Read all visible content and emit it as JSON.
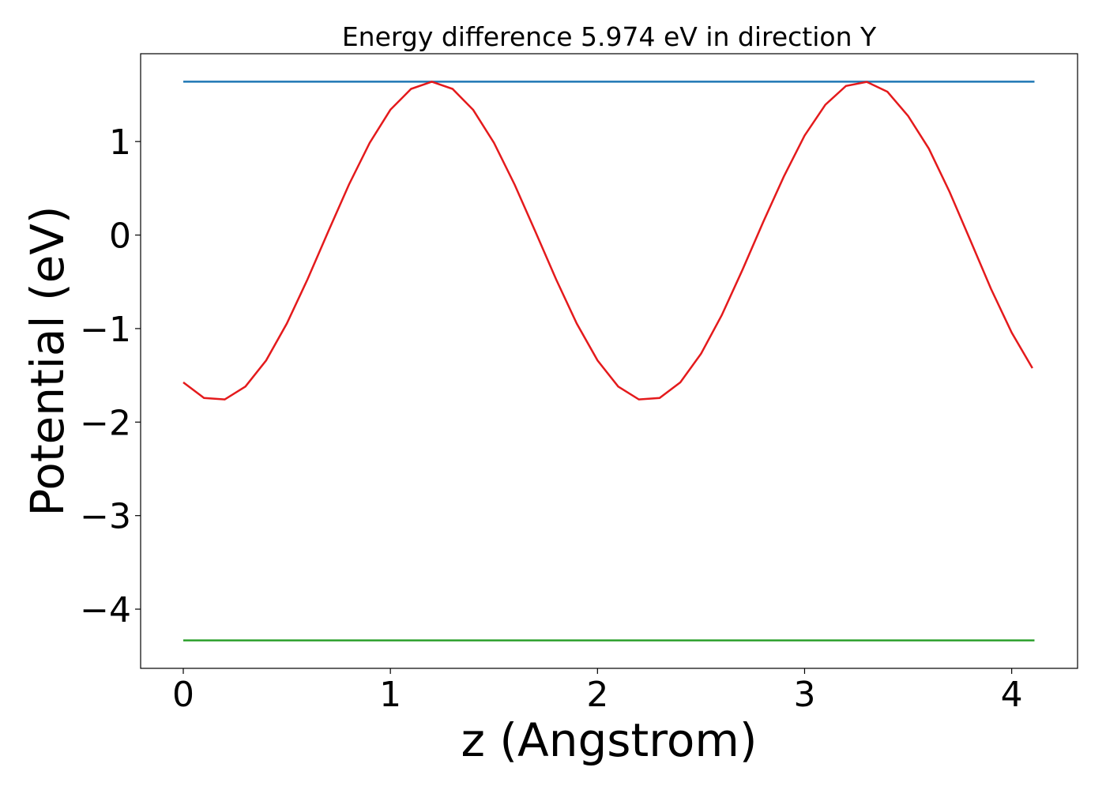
{
  "chart_data": {
    "type": "line",
    "title": "Energy difference 5.974 eV in direction Y",
    "xlabel": "z (Angstrom)",
    "ylabel": "Potential (eV)",
    "xlim": [
      -0.206,
      4.318
    ],
    "ylim": [
      -4.633,
      1.939
    ],
    "xticks": [
      0,
      1,
      2,
      3,
      4
    ],
    "yticks": [
      {
        "value": -4,
        "label": "−4"
      },
      {
        "value": -3,
        "label": "−3"
      },
      {
        "value": -2,
        "label": "−2"
      },
      {
        "value": -1,
        "label": "−1"
      },
      0,
      1
    ],
    "series": [
      {
        "color": "#1f77b4",
        "x": [
          0,
          4.11
        ],
        "values": [
          1.64,
          1.64
        ]
      },
      {
        "color": "#2ca02c",
        "x": [
          0,
          4.11
        ],
        "values": [
          -4.334,
          -4.334
        ]
      },
      {
        "color": "#e41a1c",
        "x": [
          0,
          0.1,
          0.2,
          0.3,
          0.4,
          0.5,
          0.6,
          0.7,
          0.8,
          0.9,
          1.0,
          1.1,
          1.2,
          1.3,
          1.4,
          1.5,
          1.6,
          1.7,
          1.8,
          1.9,
          2.0,
          2.1,
          2.2,
          2.3,
          2.4,
          2.5,
          2.6,
          2.7,
          2.8,
          2.9,
          3.0,
          3.1,
          3.2,
          3.3,
          3.4,
          3.5,
          3.6,
          3.7,
          3.8,
          3.9,
          4.0,
          4.1
        ],
        "values": [
          -1.575,
          -1.742,
          -1.758,
          -1.62,
          -1.341,
          -0.946,
          -0.473,
          0.038,
          0.54,
          0.986,
          1.34,
          1.563,
          1.64,
          1.563,
          1.338,
          0.987,
          0.539,
          0.037,
          -0.473,
          -0.947,
          -1.34,
          -1.62,
          -1.758,
          -1.742,
          -1.575,
          -1.269,
          -0.857,
          -0.372,
          0.139,
          0.627,
          1.064,
          1.393,
          1.595,
          1.638,
          1.532,
          1.273,
          0.924,
          0.462,
          -0.055,
          -0.575,
          -1.043,
          -1.423
        ]
      }
    ]
  }
}
